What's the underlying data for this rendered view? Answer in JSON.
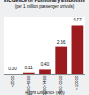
{
  "chart_data": {
    "type": "bar",
    "title": "Incidence of Pulmonary Embolism",
    "subtitle": "(per 1 million passenger arrivals)",
    "x_label": "Flight Distance (km)",
    "categories": [
      "<2500",
      "2500-4999",
      "5000-7499",
      "7500-9999",
      ">10000"
    ],
    "values": [
      0,
      0.11,
      0.4,
      2.66,
      4.77
    ],
    "value_labels": [
      "0.00",
      "0.11",
      "0.40",
      "2.66",
      "4.77"
    ],
    "color": "#9b1b1e",
    "ylim": [
      0,
      5.6
    ],
    "grid": false,
    "data_labels": true,
    "tick_labels": "x"
  }
}
